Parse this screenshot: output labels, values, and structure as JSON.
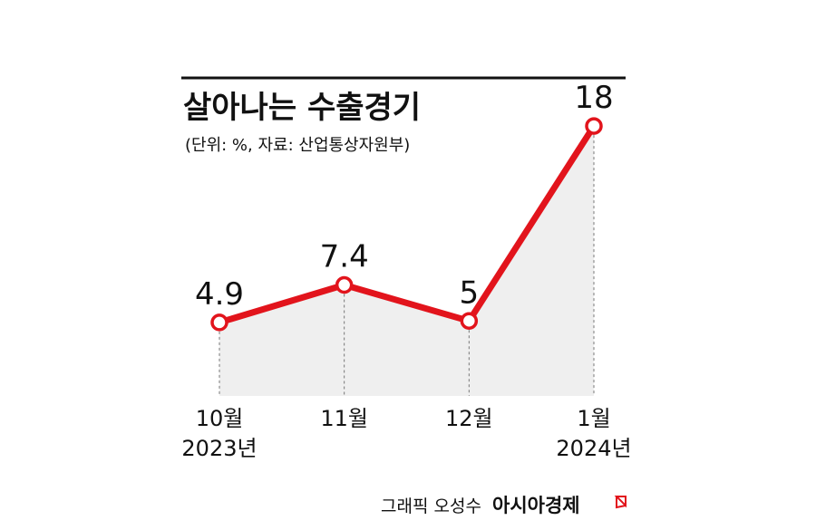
{
  "chart_data": {
    "type": "line",
    "title": "살아나는 수출경기",
    "subtitle": "(단위: %, 자료: 산업통상자원부)",
    "categories": [
      {
        "month": "10월",
        "year": "2023년"
      },
      {
        "month": "11월",
        "year": ""
      },
      {
        "month": "12월",
        "year": ""
      },
      {
        "month": "1월",
        "year": "2024년"
      }
    ],
    "series": [
      {
        "values": [
          4.9,
          7.4,
          5,
          18
        ],
        "labels": [
          "4.9",
          "7.4",
          "5",
          "18"
        ],
        "color": "#e2141c"
      }
    ],
    "area_fill": "#efefef",
    "grid": false,
    "ylim": [
      0,
      20
    ]
  },
  "credit": {
    "label": "그래픽 오성수",
    "brand": "아시아경제"
  },
  "colors": {
    "accent": "#e2141c",
    "text": "#111111",
    "rule": "#111111"
  }
}
